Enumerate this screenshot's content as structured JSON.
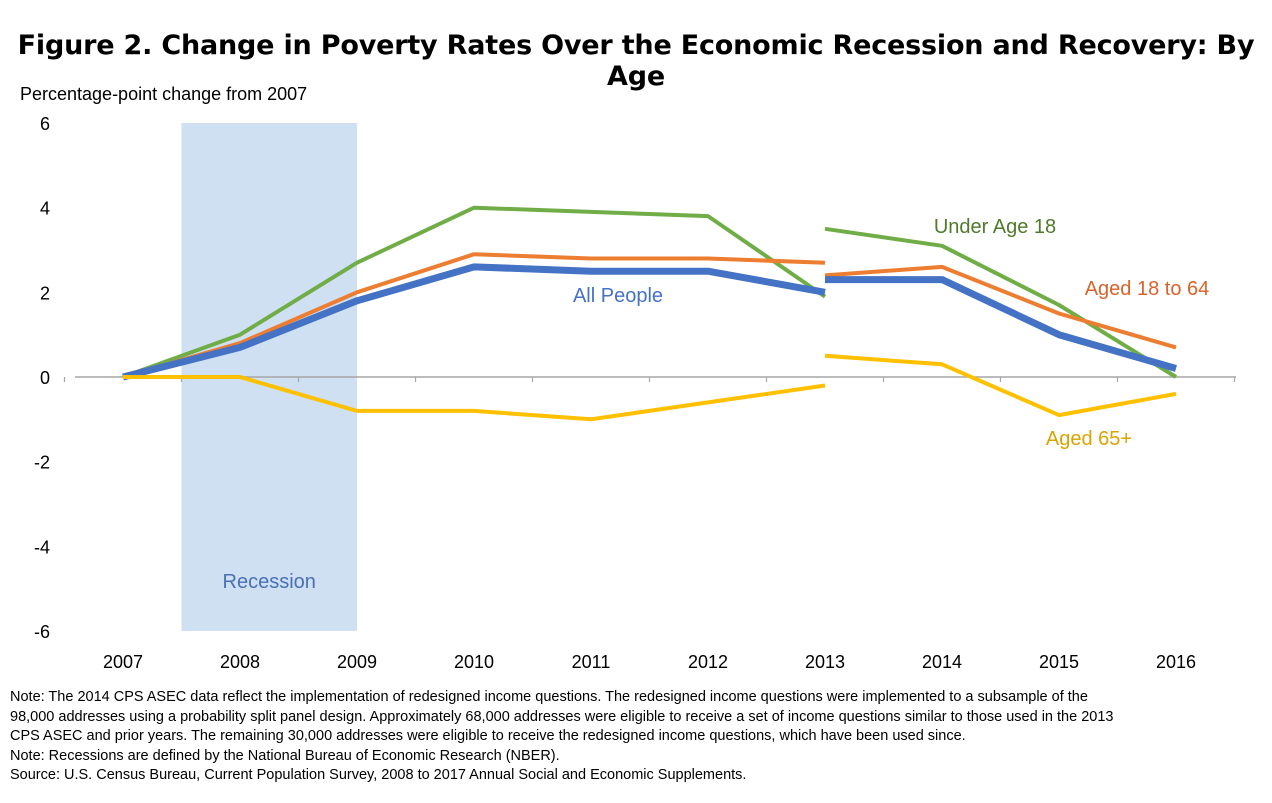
{
  "chart_data": {
    "type": "line",
    "title": "Figure 2. Change in Poverty Rates Over the Economic Recession and Recovery: By Age",
    "ylabel": "Percentage-point change from 2007",
    "xlabel": "",
    "categories": [
      "2007",
      "2008",
      "2009",
      "2010",
      "2011",
      "2012",
      "2013",
      "2014",
      "2015",
      "2016"
    ],
    "ylim": [
      -6,
      6
    ],
    "yticks": [
      "6",
      "4",
      "2",
      "0",
      "-2",
      "-4",
      "-6"
    ],
    "grid": false,
    "shaded_region": {
      "label": "Recession",
      "x_start": 2007.5,
      "x_end": 2009.0,
      "color": "#cfe0f2",
      "label_color": "#4a6fb5"
    },
    "series": [
      {
        "name": "Under Age 18",
        "color": "#70ad47",
        "segments": [
          {
            "x": [
              2007,
              2008,
              2009,
              2010,
              2011,
              2012,
              2013
            ],
            "y": [
              0,
              1.0,
              2.7,
              4.0,
              3.9,
              3.8,
              1.9
            ]
          },
          {
            "x": [
              2013,
              2014,
              2015,
              2016
            ],
            "y": [
              3.5,
              3.1,
              1.7,
              0
            ]
          }
        ]
      },
      {
        "name": "Aged 18 to 64",
        "color": "#ed7d31",
        "segments": [
          {
            "x": [
              2007,
              2008,
              2009,
              2010,
              2011,
              2012,
              2013
            ],
            "y": [
              0,
              0.8,
              2.0,
              2.9,
              2.8,
              2.8,
              2.7
            ]
          },
          {
            "x": [
              2013,
              2014,
              2015,
              2016
            ],
            "y": [
              2.4,
              2.6,
              1.5,
              0.7
            ]
          }
        ]
      },
      {
        "name": "All People",
        "color": "#4472c4",
        "segments": [
          {
            "x": [
              2007,
              2008,
              2009,
              2010,
              2011,
              2012,
              2013
            ],
            "y": [
              0,
              0.7,
              1.8,
              2.6,
              2.5,
              2.5,
              2.0
            ]
          },
          {
            "x": [
              2013,
              2014,
              2015,
              2016
            ],
            "y": [
              2.3,
              2.3,
              1.0,
              0.2
            ]
          }
        ]
      },
      {
        "name": "Aged 65+",
        "color": "#ffc000",
        "segments": [
          {
            "x": [
              2007,
              2008,
              2009,
              2010,
              2011,
              2012,
              2013
            ],
            "y": [
              0,
              0,
              -0.8,
              -0.8,
              -1.0,
              -0.6,
              -0.2
            ]
          },
          {
            "x": [
              2013,
              2014,
              2015,
              2016
            ],
            "y": [
              0.5,
              0.3,
              -0.9,
              -0.4
            ]
          }
        ]
      }
    ]
  },
  "notes": [
    "Note: The 2014 CPS ASEC data reflect the implementation of redesigned income questions. The redesigned income questions were implemented to a subsample of the",
    "98,000 addresses using a probability split panel design. Approximately 68,000 addresses were eligible to receive a set of income questions similar to those used in the 2013",
    "CPS ASEC and prior years.  The remaining 30,000 addresses were eligible to receive the redesigned income questions, which have been used since.",
    "Note: Recessions are defined by the National Bureau of Economic Research (NBER).",
    "Source: U.S. Census Bureau, Current Population Survey, 2008 to 2017 Annual Social and Economic Supplements."
  ]
}
